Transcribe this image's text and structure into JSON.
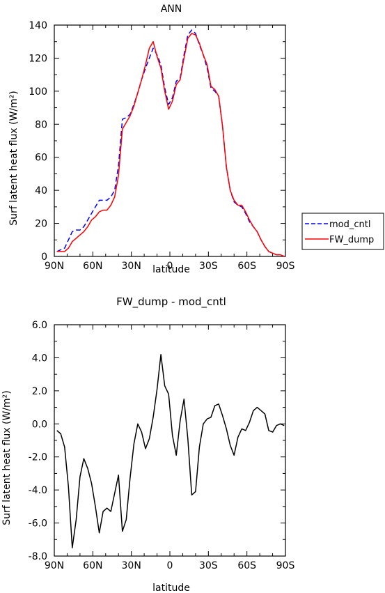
{
  "chart_data": [
    {
      "type": "line",
      "title": "ANN",
      "xlabel": "latitude",
      "ylabel": "Surf latent heat flux (W/m²)",
      "xlim": [
        90,
        -90
      ],
      "ylim": [
        0,
        140
      ],
      "x_ticks": [
        90,
        60,
        30,
        0,
        -30,
        -60,
        -90
      ],
      "x_tick_labels": [
        "90N",
        "60N",
        "30N",
        "0",
        "30S",
        "60S",
        "90S"
      ],
      "y_ticks": [
        0,
        20,
        40,
        60,
        80,
        100,
        120,
        140
      ],
      "y_tick_labels": [
        "0",
        "20",
        "40",
        "60",
        "80",
        "100",
        "120",
        "140"
      ],
      "grid": false,
      "legend_position": "right",
      "series": [
        {
          "name": "mod_cntl",
          "color": "#0000ff",
          "dash": "dashed",
          "x": [
            88,
            85,
            82,
            79,
            76,
            73,
            70,
            67,
            64,
            61,
            58,
            55,
            52,
            49,
            46,
            43,
            40,
            37,
            34,
            31,
            28,
            25,
            22,
            19,
            16,
            13,
            10,
            7,
            4,
            1,
            -2,
            -5,
            -8,
            -11,
            -14,
            -17,
            -20,
            -23,
            -26,
            -29,
            -32,
            -35,
            -38,
            -41,
            -44,
            -47,
            -50,
            -53,
            -56,
            -59,
            -62,
            -65,
            -68,
            -71,
            -74,
            -77,
            -80,
            -83,
            -86,
            -89
          ],
          "y": [
            3,
            4,
            5,
            10,
            15,
            16,
            16,
            18,
            22,
            26,
            30,
            34,
            34,
            34,
            36,
            40,
            55,
            83,
            84,
            86,
            92,
            99,
            107,
            114,
            120,
            126,
            122,
            116,
            102,
            92,
            96,
            106,
            108,
            122,
            134,
            137,
            135,
            128,
            122,
            114,
            102,
            100,
            97,
            79,
            54,
            40,
            33,
            31,
            30,
            26,
            21,
            18,
            15,
            10,
            6,
            3,
            2,
            1,
            1,
            0
          ]
        },
        {
          "name": "FW_dump",
          "color": "#ff0000",
          "dash": "solid",
          "x": [
            88,
            85,
            82,
            79,
            76,
            73,
            70,
            67,
            64,
            61,
            58,
            55,
            52,
            49,
            46,
            43,
            40,
            37,
            34,
            31,
            28,
            25,
            22,
            19,
            16,
            13,
            10,
            7,
            4,
            1,
            -2,
            -5,
            -8,
            -11,
            -14,
            -17,
            -20,
            -23,
            -26,
            -29,
            -32,
            -35,
            -38,
            -41,
            -44,
            -47,
            -50,
            -53,
            -56,
            -59,
            -62,
            -65,
            -68,
            -71,
            -74,
            -77,
            -80,
            -83,
            -86,
            -89
          ],
          "y": [
            3,
            3,
            3,
            5,
            9,
            11,
            13,
            15,
            18,
            22,
            24,
            27,
            28,
            28,
            31,
            36,
            49,
            77,
            81,
            85,
            91,
            99,
            107,
            116,
            126,
            130,
            121,
            114,
            100,
            89,
            94,
            104,
            107,
            120,
            132,
            135,
            134,
            129,
            122,
            116,
            103,
            101,
            97,
            79,
            54,
            40,
            34,
            31,
            31,
            27,
            22,
            18,
            15,
            10,
            6,
            3,
            2,
            1,
            1,
            0
          ]
        }
      ]
    },
    {
      "type": "line",
      "title": "FW_dump - mod_cntl",
      "xlabel": "latitude",
      "ylabel": "Surf latent heat flux (W/m²)",
      "xlim": [
        90,
        -90
      ],
      "ylim": [
        -8,
        6
      ],
      "x_ticks": [
        90,
        60,
        30,
        0,
        -30,
        -60,
        -90
      ],
      "x_tick_labels": [
        "90N",
        "60N",
        "30N",
        "0",
        "30S",
        "60S",
        "90S"
      ],
      "y_ticks": [
        -8,
        -6,
        -4,
        -2,
        0,
        2,
        4,
        6
      ],
      "y_tick_labels": [
        "-8.0",
        "-6.0",
        "-4.0",
        "-2.0",
        "0.0",
        "2.0",
        "4.0",
        "6.0"
      ],
      "grid": false,
      "series": [
        {
          "color": "#000000",
          "dash": "solid",
          "x": [
            88,
            85,
            82,
            79,
            76,
            73,
            70,
            67,
            64,
            61,
            58,
            55,
            52,
            49,
            46,
            43,
            40,
            37,
            34,
            31,
            28,
            25,
            22,
            19,
            16,
            13,
            10,
            7,
            4,
            1,
            -2,
            -5,
            -8,
            -11,
            -14,
            -17,
            -20,
            -23,
            -26,
            -29,
            -32,
            -35,
            -38,
            -41,
            -44,
            -47,
            -50,
            -53,
            -56,
            -59,
            -62,
            -65,
            -68,
            -71,
            -74,
            -77,
            -80,
            -83,
            -86,
            -89
          ],
          "y": [
            -0.4,
            -0.6,
            -1.4,
            -3.8,
            -7.5,
            -5.8,
            -3.2,
            -2.1,
            -2.7,
            -3.6,
            -5.0,
            -6.6,
            -5.3,
            -5.1,
            -5.3,
            -4.2,
            -3.1,
            -6.5,
            -5.8,
            -3.3,
            -1.2,
            0.0,
            -0.5,
            -1.5,
            -0.9,
            0.4,
            2.1,
            4.2,
            2.3,
            1.8,
            -0.7,
            -1.9,
            0.2,
            1.5,
            -0.9,
            -4.3,
            -4.1,
            -1.4,
            0.0,
            0.3,
            0.4,
            1.1,
            1.2,
            0.5,
            -0.3,
            -1.3,
            -1.9,
            -0.8,
            -0.3,
            -0.4,
            0.1,
            0.8,
            1.0,
            0.8,
            0.6,
            -0.4,
            -0.5,
            -0.1,
            0.0,
            -0.1
          ]
        }
      ]
    }
  ]
}
